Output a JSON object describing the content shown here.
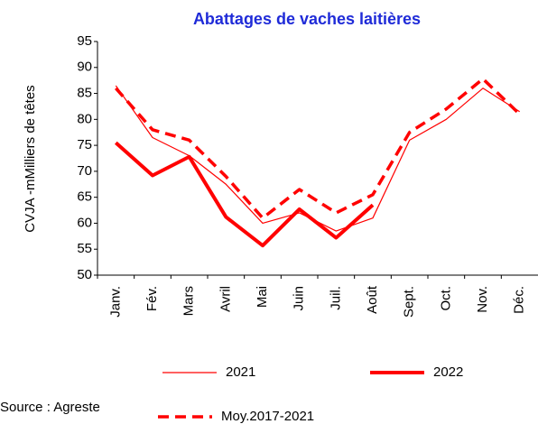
{
  "chart_data": {
    "type": "line",
    "title": "Abattages de vaches laitières",
    "y_label": "CVJA -mMilliers  de têtes",
    "source": "Source : Agreste",
    "categories": [
      "Janv.",
      "Fév.",
      "Mars",
      "Avril",
      "Mai",
      "Juin",
      "Juil.",
      "Août",
      "Sept.",
      "Oct.",
      "Nov.",
      "Déc."
    ],
    "series": [
      {
        "name": "2021",
        "color": "#ff0000",
        "style": "thin",
        "values": [
          86.5,
          76.5,
          73,
          67.5,
          60,
          62,
          58.5,
          61,
          76,
          80,
          86,
          81.5
        ]
      },
      {
        "name": "2022",
        "color": "#ff0000",
        "style": "thick",
        "values": [
          75.5,
          69.2,
          72.8,
          61.2,
          55.7,
          62.7,
          57.2,
          63.5,
          null,
          null,
          null,
          null
        ]
      },
      {
        "name": "Moy.2017-2021",
        "color": "#ff0000",
        "style": "dashed",
        "values": [
          86,
          78,
          76,
          69,
          61,
          66.5,
          62,
          65.5,
          77.5,
          82,
          87.8,
          81
        ]
      }
    ],
    "ylim": [
      50,
      95
    ],
    "yticks": [
      50,
      55,
      60,
      65,
      70,
      75,
      80,
      85,
      90,
      95
    ],
    "grid": false
  }
}
